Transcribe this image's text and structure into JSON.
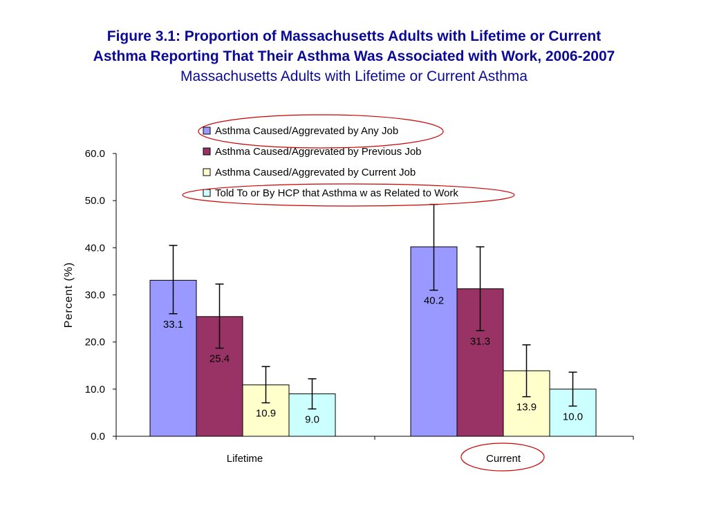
{
  "title": {
    "line1": "Figure 3.1: Proportion of Massachusetts Adults with Lifetime or Current",
    "line2": "Asthma Reporting That Their Asthma Was Associated with Work, 2006-2007",
    "subtitle": "Massachusetts Adults with Lifetime or Current Asthma"
  },
  "chart_data": {
    "type": "bar",
    "categories": [
      "Lifetime",
      "Current"
    ],
    "ylabel": "Percent (%)",
    "xlabel": "",
    "ylim": [
      0,
      60
    ],
    "yticks": [
      "0.0",
      "10.0",
      "20.0",
      "30.0",
      "40.0",
      "50.0",
      "60.0"
    ],
    "grid": false,
    "legend_position": "top-right",
    "series": [
      {
        "name": "Asthma Caused/Aggrevated by Any Job",
        "color": "#9999ff",
        "values": [
          33.1,
          40.2
        ],
        "labels": [
          "33.1",
          "40.2"
        ],
        "error_low": [
          26.0,
          31.0
        ],
        "error_high": [
          40.5,
          49.2
        ]
      },
      {
        "name": "Asthma Caused/Aggrevated by Previous Job",
        "color": "#993366",
        "values": [
          25.4,
          31.3
        ],
        "labels": [
          "25.4",
          "31.3"
        ],
        "error_low": [
          18.7,
          22.4
        ],
        "error_high": [
          32.3,
          40.2
        ]
      },
      {
        "name": "Asthma Caused/Aggrevated by Current Job",
        "color": "#ffffcc",
        "values": [
          10.9,
          13.9
        ],
        "labels": [
          "10.9",
          "13.9"
        ],
        "error_low": [
          7.1,
          8.4
        ],
        "error_high": [
          14.8,
          19.4
        ]
      },
      {
        "name": "Told To or By HCP that Asthma w as Related to Work",
        "color": "#ccffff",
        "values": [
          9.0,
          10.0
        ],
        "labels": [
          "9.0",
          "10.0"
        ],
        "error_low": [
          5.8,
          6.4
        ],
        "error_high": [
          12.2,
          13.6
        ]
      }
    ],
    "annotations": {
      "circle_color": "#cc0000",
      "circled_legend_entries": [
        0,
        3
      ],
      "circled_categories": [
        1
      ]
    }
  }
}
